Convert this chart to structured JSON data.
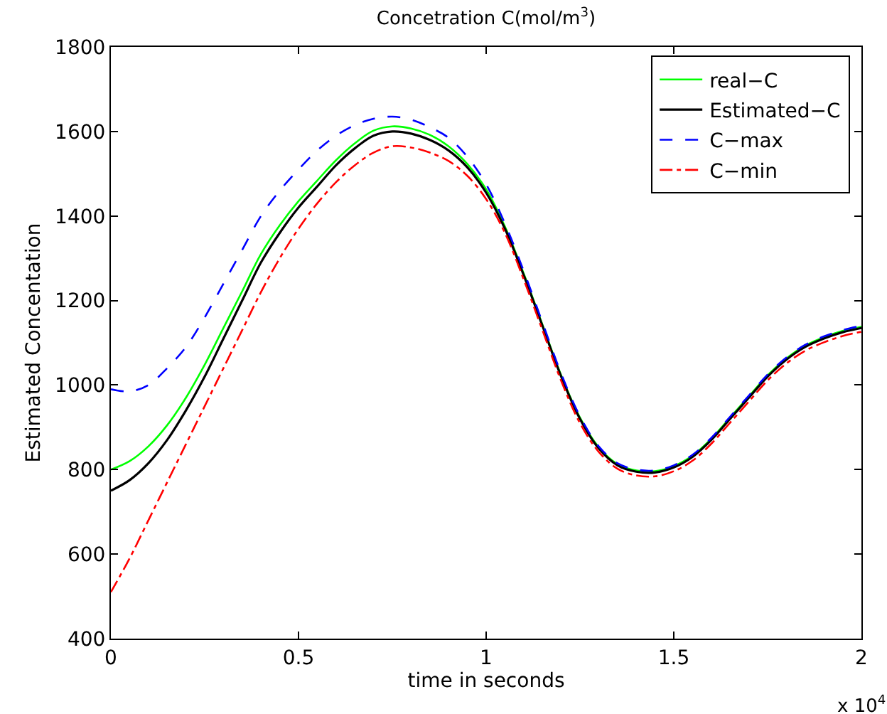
{
  "chart_data": {
    "type": "line",
    "title": "Concetration C(mol/m$^{3}$)",
    "xlabel": "time in seconds",
    "ylabel": "Estimated Concentation",
    "annotations": [
      "x 10$^{4}$"
    ],
    "x": [
      0,
      0.05,
      0.1,
      0.15,
      0.2,
      0.25,
      0.3,
      0.35,
      0.4,
      0.45,
      0.5,
      0.55,
      0.6,
      0.65,
      0.7,
      0.75,
      0.8,
      0.85,
      0.9,
      0.95,
      1,
      1.05,
      1.1,
      1.15,
      1.2,
      1.25,
      1.3,
      1.35,
      1.4,
      1.45,
      1.5,
      1.55,
      1.6,
      1.65,
      1.7,
      1.75,
      1.8,
      1.85,
      1.9,
      1.95,
      2
    ],
    "series": [
      {
        "name": "real−C",
        "color": "#00ff00",
        "line_style": "solid",
        "values": [
          800,
          820,
          855,
          905,
          970,
          1048,
          1135,
          1222,
          1310,
          1378,
          1435,
          1484,
          1532,
          1572,
          1602,
          1612,
          1607,
          1592,
          1565,
          1523,
          1463,
          1375,
          1264,
          1143,
          1023,
          923,
          853,
          813,
          798,
          796,
          808,
          833,
          873,
          923,
          973,
          1023,
          1063,
          1093,
          1113,
          1128,
          1138
        ]
      },
      {
        "name": "Estimated−C",
        "color": "#000000",
        "line_style": "solid",
        "values": [
          750,
          775,
          815,
          870,
          940,
          1020,
          1110,
          1200,
          1290,
          1360,
          1420,
          1470,
          1520,
          1560,
          1590,
          1600,
          1595,
          1580,
          1555,
          1515,
          1455,
          1370,
          1260,
          1140,
          1020,
          920,
          850,
          810,
          795,
          793,
          805,
          830,
          870,
          920,
          970,
          1020,
          1060,
          1090,
          1110,
          1125,
          1135
        ]
      },
      {
        "name": "C−max",
        "color": "#0000ff",
        "line_style": "dashed",
        "values": [
          990,
          985,
          1000,
          1040,
          1090,
          1160,
          1240,
          1320,
          1400,
          1460,
          1510,
          1555,
          1590,
          1615,
          1630,
          1635,
          1628,
          1610,
          1585,
          1540,
          1475,
          1382,
          1270,
          1148,
          1027,
          926,
          855,
          815,
          800,
          798,
          810,
          835,
          875,
          925,
          975,
          1025,
          1065,
          1095,
          1115,
          1130,
          1140
        ]
      },
      {
        "name": "C−min",
        "color": "#ff0000",
        "line_style": "dashdot",
        "values": [
          510,
          590,
          680,
          770,
          860,
          950,
          1040,
          1130,
          1220,
          1300,
          1370,
          1430,
          1480,
          1520,
          1550,
          1565,
          1562,
          1550,
          1530,
          1495,
          1440,
          1360,
          1250,
          1130,
          1010,
          910,
          842,
          802,
          786,
          784,
          796,
          821,
          861,
          911,
          961,
          1011,
          1051,
          1081,
          1101,
          1116,
          1126
        ]
      }
    ],
    "xlim": [
      0,
      2
    ],
    "xticks": [
      0,
      0.5,
      1,
      1.5,
      2
    ],
    "ylim": [
      400,
      1800
    ],
    "yticks": [
      400,
      600,
      800,
      1000,
      1200,
      1400,
      1600,
      1800
    ],
    "legend": "top right",
    "marker": "none"
  }
}
